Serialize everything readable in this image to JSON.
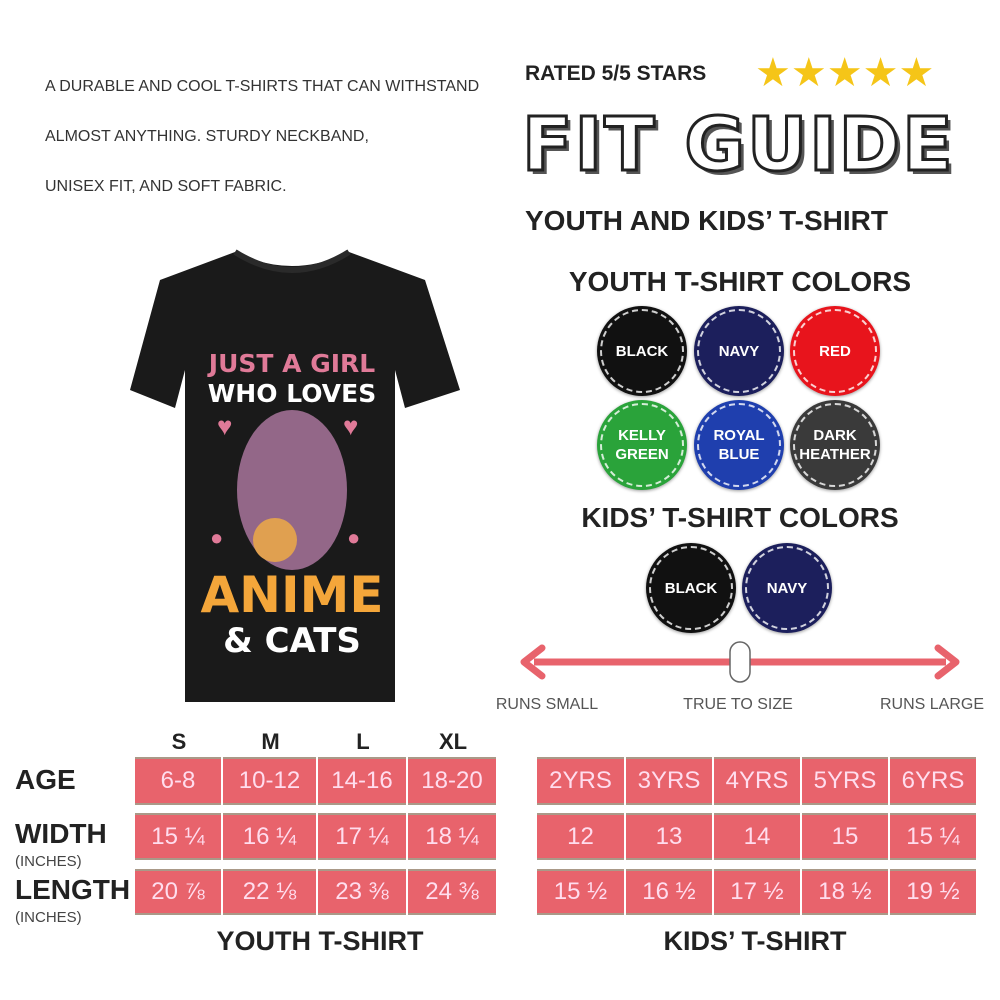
{
  "description": [
    "A DURABLE AND COOL T-SHIRTS THAT CAN WITHSTAND",
    "ALMOST ANYTHING. STURDY NECKBAND,",
    "UNISEX FIT, AND SOFT FABRIC."
  ],
  "rating": {
    "label": "RATED 5/5 STARS",
    "value": 5,
    "max": 5,
    "star_color": "#f5c518"
  },
  "title": "FIT GUIDE",
  "subtitle": "YOUTH AND KIDS’ T-SHIRT",
  "shirt_design": {
    "line1": "JUST A GIRL",
    "line2": "WHO LOVES",
    "line3": "ANIME",
    "line4": "& CATS"
  },
  "youth_colors": {
    "title": "YOUTH T-SHIRT COLORS",
    "items": [
      {
        "label": "BLACK",
        "color": "#111111"
      },
      {
        "label": "NAVY",
        "color": "#1c1f5c"
      },
      {
        "label": "RED",
        "color": "#e8141c"
      },
      {
        "label": "KELLY GREEN",
        "color": "#2aa33a"
      },
      {
        "label": "ROYAL BLUE",
        "color": "#1f3fae"
      },
      {
        "label": "DARK HEATHER",
        "color": "#3a3a3a"
      }
    ]
  },
  "kids_colors": {
    "title": "KIDS’ T-SHIRT COLORS",
    "items": [
      {
        "label": "BLACK",
        "color": "#111111"
      },
      {
        "label": "NAVY",
        "color": "#1c1f5c"
      }
    ]
  },
  "fit_scale": {
    "left": "RUNS SMALL",
    "center": "TRUE TO SIZE",
    "right": "RUNS LARGE",
    "position": 0.5
  },
  "youth_table": {
    "sizes": [
      "S",
      "M",
      "L",
      "XL"
    ],
    "rows": [
      {
        "label": "AGE",
        "unit": "",
        "values": [
          "6-8",
          "10-12",
          "14-16",
          "18-20"
        ]
      },
      {
        "label": "WIDTH",
        "unit": "(INCHES)",
        "values": [
          "15 ¼",
          "16 ¼",
          "17 ¼",
          "18 ¼"
        ]
      },
      {
        "label": "LENGTH",
        "unit": "(INCHES)",
        "values": [
          "20 ⅞",
          "22 ⅛",
          "23 ⅜",
          "24 ⅜"
        ]
      }
    ],
    "caption": "YOUTH T-SHIRT"
  },
  "kids_table": {
    "rows": [
      [
        "2YRS",
        "3YRS",
        "4YRS",
        "5YRS",
        "6YRS"
      ],
      [
        "12",
        "13",
        "14",
        "15",
        "15 ¼"
      ],
      [
        "15 ½",
        "16 ½",
        "17 ½",
        "18 ½",
        "19 ½"
      ]
    ],
    "caption": "KIDS’ T-SHIRT"
  },
  "cell_color": "#e8636c"
}
